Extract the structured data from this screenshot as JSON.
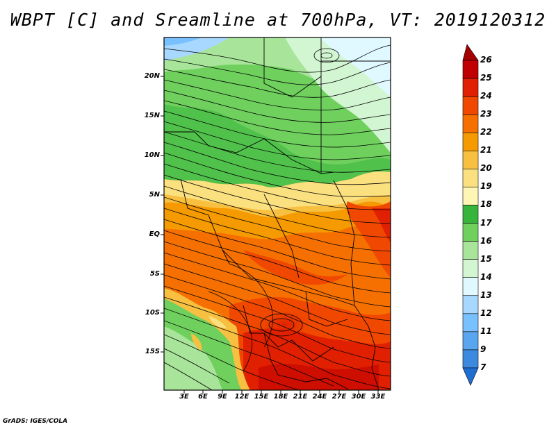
{
  "title": "WBPT [C] and Sreamline at 700hPa, VT: 2019120312",
  "credit": "GrADS: IGES/COLA",
  "map": {
    "lat_labels": [
      "20N",
      "15N",
      "10N",
      "5N",
      "EQ",
      "5S",
      "10S",
      "15S"
    ],
    "lon_labels": [
      "3E",
      "6E",
      "9E",
      "12E",
      "15E",
      "18E",
      "21E",
      "24E",
      "27E",
      "30E",
      "33E"
    ]
  },
  "colorbar": {
    "labels": [
      "26",
      "25",
      "24",
      "23",
      "22",
      "21",
      "20",
      "19",
      "18",
      "17",
      "16",
      "15",
      "14",
      "13",
      "12",
      "11",
      "9",
      "7"
    ],
    "colors": [
      "#a50000",
      "#c00000",
      "#e02000",
      "#f04800",
      "#f57000",
      "#f59a00",
      "#f8c040",
      "#fbe080",
      "#fff5b5",
      "#37b43c",
      "#6fd05e",
      "#a8e49a",
      "#d2f5d2",
      "#e0f8ff",
      "#a8d8ff",
      "#78c0ff",
      "#5aa5f0",
      "#3c8ae0",
      "#1e6ed2"
    ]
  }
}
